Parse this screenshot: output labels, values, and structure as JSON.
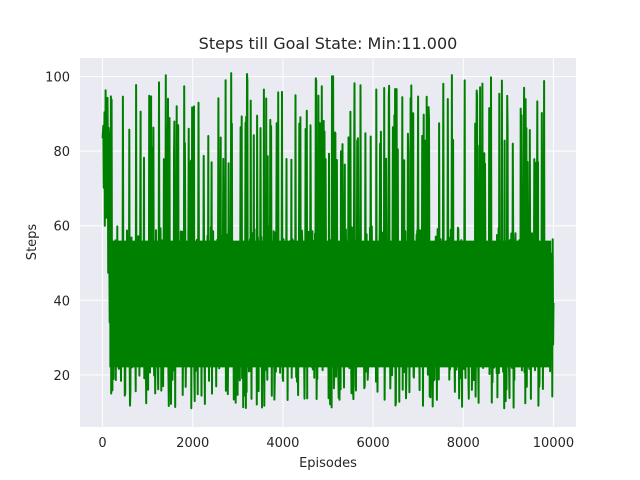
{
  "chart_data": {
    "type": "line",
    "title": "Steps till Goal State: Min:11.000",
    "xlabel": "Episodes",
    "ylabel": "Steps",
    "xlim": [
      -500,
      10500
    ],
    "ylim": [
      6,
      105
    ],
    "x_ticks": [
      0,
      2000,
      4000,
      6000,
      8000,
      10000
    ],
    "y_ticks": [
      20,
      40,
      60,
      80,
      100
    ],
    "grid": true,
    "background": "#eaeaf2",
    "series": [
      {
        "color": "#008000",
        "x_start": 1,
        "x_end": 10000,
        "y_min": 11,
        "y_max": 101,
        "dense_band": [
          18,
          60
        ]
      }
    ]
  }
}
